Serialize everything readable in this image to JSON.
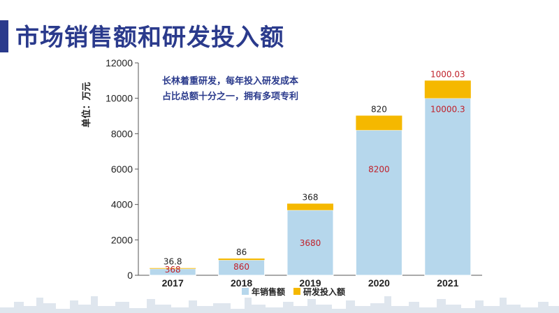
{
  "page": {
    "title": "市场销售额和研发投入额"
  },
  "chart_data": {
    "type": "bar",
    "stacked": true,
    "categories": [
      "2017",
      "2018",
      "2019",
      "2020",
      "2021"
    ],
    "series": [
      {
        "name": "年销售额",
        "color": "#b6d7ec",
        "values": [
          368,
          860,
          3680,
          8200,
          10000.3
        ],
        "labels": [
          "368",
          "860",
          "3680",
          "8200",
          "10000.3"
        ],
        "label_color": "#c0202a"
      },
      {
        "name": "研发投入额",
        "color": "#f5b800",
        "values": [
          36.8,
          86,
          368,
          820,
          1000.03
        ],
        "labels": [
          "36.8",
          "86",
          "368",
          "820",
          "1000.03"
        ],
        "label_colors": [
          "#222222",
          "#222222",
          "#222222",
          "#222222",
          "#c0202a"
        ]
      }
    ],
    "ylabel": "单位：万元",
    "yticks": [
      "0",
      "2000",
      "4000",
      "6000",
      "8000",
      "10000",
      "12000"
    ],
    "ylim": [
      0,
      12000
    ],
    "annotation": [
      "长林着重研发，每年投入研发成本",
      "占比总额十分之一，拥有多项专利"
    ],
    "legend_position": "bottom-center",
    "grid": false
  }
}
